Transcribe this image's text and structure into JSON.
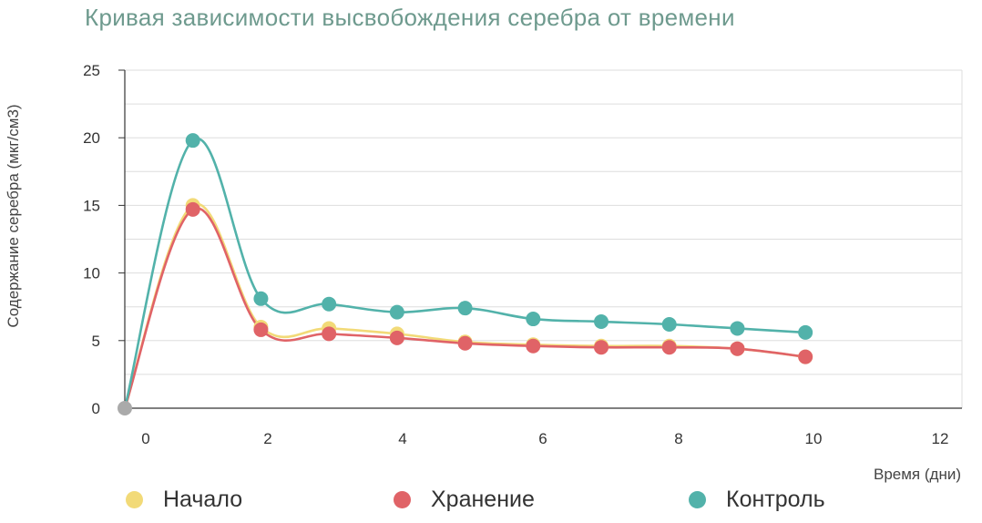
{
  "chart_data": {
    "type": "line",
    "title": "Кривая зависимости высвобождения серебра от времени",
    "xlabel": "Время (дни)",
    "ylabel": "Содержание серебра (мкг/см3)",
    "xlim": [
      -0.3,
      12
    ],
    "ylim": [
      0,
      25
    ],
    "xticks": [
      0,
      2,
      4,
      6,
      8,
      10,
      12
    ],
    "yticks": [
      0,
      5,
      10,
      15,
      20,
      25
    ],
    "grid": "horizontal",
    "legend_position": "bottom",
    "series": [
      {
        "name": "Начало",
        "color": "#f2da78",
        "x": [
          -0.3,
          0.7,
          1.7,
          2.7,
          3.7,
          4.7,
          5.7,
          6.7,
          7.7,
          8.7,
          9.7
        ],
        "y": [
          0,
          15.0,
          6.0,
          5.9,
          5.5,
          4.9,
          4.7,
          4.6,
          4.6,
          4.4,
          3.8
        ]
      },
      {
        "name": "Хранение",
        "color": "#e06367",
        "x": [
          -0.3,
          0.7,
          1.7,
          2.7,
          3.7,
          4.7,
          5.7,
          6.7,
          7.7,
          8.7,
          9.7
        ],
        "y": [
          0,
          14.7,
          5.8,
          5.5,
          5.2,
          4.8,
          4.6,
          4.5,
          4.5,
          4.4,
          3.8
        ]
      },
      {
        "name": "Контроль",
        "color": "#52b2aa",
        "x": [
          -0.3,
          0.7,
          1.7,
          2.7,
          3.7,
          4.7,
          5.7,
          6.7,
          7.7,
          8.7,
          9.7
        ],
        "y": [
          0,
          19.8,
          8.1,
          7.7,
          7.1,
          7.4,
          6.6,
          6.4,
          6.2,
          5.9,
          5.6
        ]
      }
    ],
    "origin_point_color": "#aaaaaa"
  }
}
